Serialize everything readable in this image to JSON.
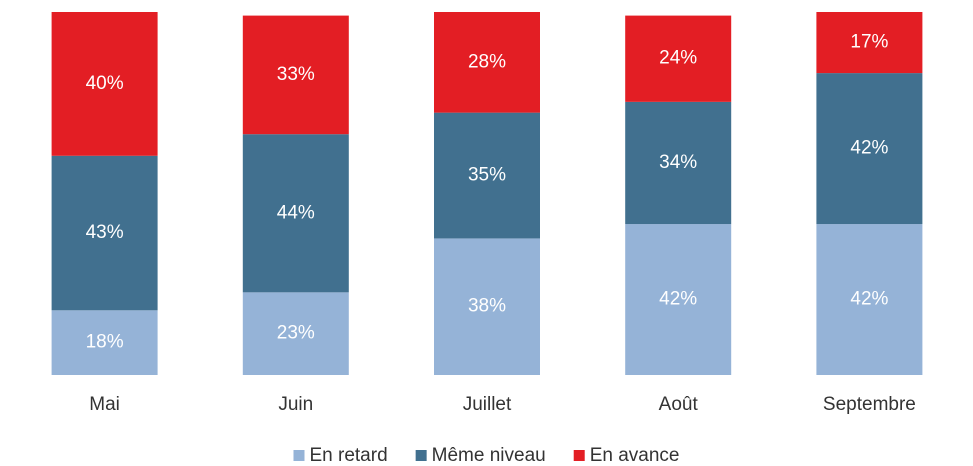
{
  "chart_data": {
    "type": "stacked_bar",
    "categories": [
      "Mai",
      "Juin",
      "Juillet",
      "Août",
      "Septembre"
    ],
    "series": [
      {
        "name": "En retard",
        "color": "#95b3d7",
        "values": [
          18,
          23,
          38,
          42,
          42
        ],
        "value_labels": [
          "18%",
          "23%",
          "38%",
          "42%",
          "42%"
        ]
      },
      {
        "name": "Même niveau",
        "color": "#41708f",
        "values": [
          43,
          44,
          35,
          34,
          42
        ],
        "value_labels": [
          "43%",
          "44%",
          "35%",
          "34%",
          "42%"
        ]
      },
      {
        "name": "En avance",
        "color": "#e31e24",
        "values": [
          40,
          33,
          28,
          24,
          17
        ],
        "value_labels": [
          "40%",
          "33%",
          "28%",
          "24%",
          "17%"
        ]
      }
    ],
    "legend": "bottom"
  }
}
